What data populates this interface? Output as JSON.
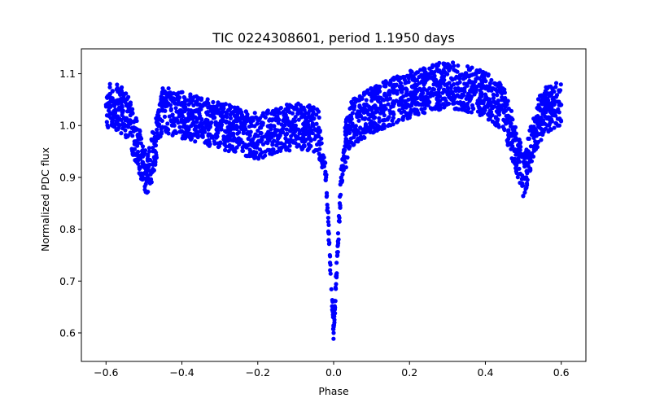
{
  "chart_data": {
    "type": "scatter",
    "title": "TIC 0224308601, period 1.1950 days",
    "xlabel": "Phase",
    "ylabel": "Normalized PDC flux",
    "xlim": [
      -0.665,
      0.665
    ],
    "ylim": [
      0.545,
      1.148
    ],
    "xticks": [
      -0.6,
      -0.4,
      -0.2,
      0.0,
      0.2,
      0.4,
      0.6
    ],
    "xtick_labels": [
      "−0.6",
      "−0.4",
      "−0.2",
      "0.0",
      "0.2",
      "0.4",
      "0.6"
    ],
    "yticks": [
      0.6,
      0.7,
      0.8,
      0.9,
      1.0,
      1.1
    ],
    "ytick_labels": [
      "0.6",
      "0.7",
      "0.8",
      "0.9",
      "1.0",
      "1.1"
    ],
    "grid": false,
    "legend": "none",
    "marker_color": "#0000ff",
    "series": [
      {
        "x": [
          -0.6,
          -0.58,
          -0.56,
          -0.54,
          -0.52,
          -0.5,
          -0.49,
          -0.47,
          -0.45,
          -0.4,
          -0.3,
          -0.2,
          -0.1,
          -0.04,
          -0.02,
          -0.01,
          0.0,
          0.01,
          0.02,
          0.04,
          0.1,
          0.2,
          0.3,
          0.4,
          0.45,
          0.47,
          0.49,
          0.5,
          0.52,
          0.54,
          0.56,
          0.58,
          0.6
        ],
        "y": [
          1.04,
          1.04,
          1.03,
          1.01,
          0.97,
          0.92,
          0.9,
          0.97,
          1.03,
          1.02,
          1.0,
          0.98,
          1.0,
          0.99,
          0.9,
          0.75,
          0.6,
          0.75,
          0.9,
          1.0,
          1.03,
          1.06,
          1.08,
          1.06,
          1.03,
          0.98,
          0.93,
          0.9,
          0.96,
          1.01,
          1.03,
          1.04,
          1.04
        ]
      }
    ]
  }
}
